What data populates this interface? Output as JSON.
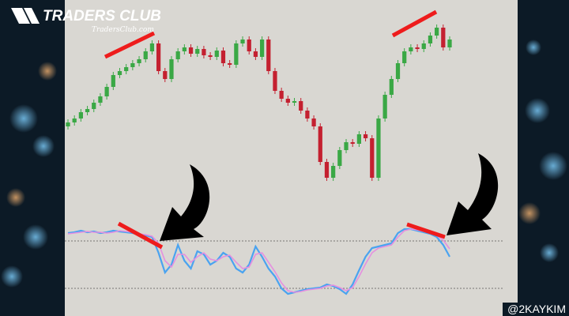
{
  "brand": {
    "title": "TRADERS CLUB",
    "subtitle": "TradersClub.com"
  },
  "watermark": "@2KAYKIM",
  "chart_data": [
    {
      "type": "candlestick",
      "up_color": "#3aa845",
      "down_color": "#c42030",
      "ylim": [
        0,
        220
      ],
      "open": [
        80,
        85,
        90,
        98,
        102,
        110,
        118,
        130,
        145,
        150,
        155,
        160,
        165,
        175,
        185,
        150,
        140,
        165,
        175,
        180,
        172,
        178,
        170,
        168,
        176,
        160,
        158,
        185,
        190,
        175,
        168,
        190,
        150,
        125,
        115,
        110,
        112,
        100,
        90,
        80,
        35,
        15,
        30,
        50,
        60,
        58,
        70,
        65,
        15,
        90,
        120,
        140,
        160,
        175,
        180,
        178,
        185,
        195,
        205,
        180
      ],
      "high": [
        89,
        94,
        102,
        106,
        114,
        122,
        134,
        149,
        154,
        159,
        164,
        169,
        179,
        189,
        189,
        154,
        169,
        179,
        184,
        184,
        182,
        182,
        174,
        180,
        180,
        164,
        189,
        194,
        194,
        179,
        194,
        194,
        154,
        129,
        119,
        116,
        116,
        104,
        94,
        84,
        39,
        34,
        54,
        64,
        64,
        74,
        74,
        69,
        94,
        124,
        144,
        164,
        179,
        184,
        184,
        189,
        199,
        209,
        209,
        194
      ],
      "low": [
        76,
        81,
        86,
        94,
        98,
        106,
        114,
        126,
        141,
        146,
        151,
        156,
        161,
        171,
        146,
        136,
        136,
        161,
        171,
        168,
        168,
        166,
        164,
        164,
        156,
        154,
        154,
        181,
        171,
        164,
        164,
        146,
        121,
        111,
        106,
        106,
        96,
        86,
        76,
        31,
        11,
        11,
        26,
        46,
        54,
        54,
        61,
        11,
        11,
        86,
        116,
        136,
        156,
        171,
        174,
        174,
        181,
        191,
        176,
        176
      ],
      "close": [
        85,
        90,
        98,
        102,
        110,
        118,
        130,
        145,
        150,
        155,
        160,
        165,
        175,
        185,
        150,
        140,
        165,
        175,
        180,
        172,
        178,
        170,
        168,
        176,
        160,
        158,
        185,
        190,
        175,
        168,
        190,
        150,
        125,
        115,
        110,
        112,
        100,
        90,
        80,
        35,
        15,
        30,
        50,
        60,
        58,
        70,
        65,
        15,
        90,
        120,
        140,
        160,
        175,
        180,
        178,
        185,
        195,
        205,
        180,
        190
      ]
    },
    {
      "type": "line",
      "ylim": [
        0,
        100
      ],
      "hlines": [
        75,
        15
      ],
      "series": [
        {
          "color": "#4aa3f0",
          "values": [
            85,
            86,
            88,
            86,
            87,
            85,
            86,
            88,
            87,
            86,
            85,
            83,
            82,
            80,
            60,
            35,
            45,
            70,
            50,
            40,
            62,
            58,
            45,
            50,
            60,
            55,
            40,
            35,
            45,
            68,
            55,
            40,
            30,
            15,
            8,
            10,
            12,
            14,
            15,
            16,
            20,
            18,
            14,
            8,
            20,
            38,
            55,
            66,
            68,
            70,
            72,
            85,
            90,
            90,
            88,
            86,
            84,
            80,
            70,
            55
          ]
        },
        {
          "color": "#e58fe0",
          "values": [
            84,
            85,
            86,
            87,
            86,
            86,
            85,
            86,
            88,
            87,
            86,
            84,
            83,
            81,
            72,
            50,
            42,
            58,
            58,
            48,
            55,
            60,
            52,
            50,
            55,
            57,
            48,
            40,
            42,
            58,
            60,
            48,
            36,
            22,
            12,
            10,
            11,
            13,
            14,
            15,
            18,
            19,
            16,
            12,
            16,
            30,
            46,
            60,
            66,
            68,
            70,
            80,
            88,
            90,
            89,
            87,
            85,
            82,
            76,
            65
          ]
        }
      ]
    }
  ]
}
